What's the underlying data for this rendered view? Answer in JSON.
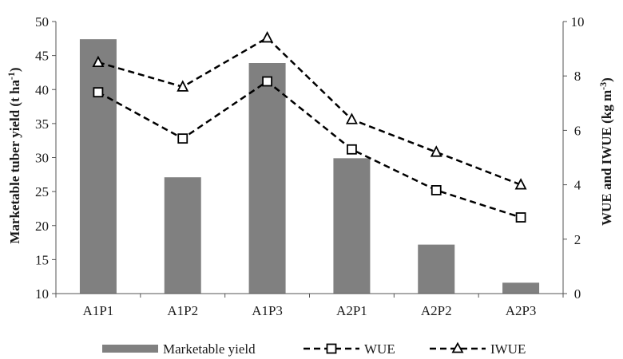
{
  "chart_data": {
    "type": "bar+line",
    "categories": [
      "A1P1",
      "A1P2",
      "A1P3",
      "A2P1",
      "A2P2",
      "A2P3"
    ],
    "bar_series": {
      "name": "Marketable yield",
      "axis": "left",
      "values": [
        47.4,
        27.1,
        43.9,
        29.9,
        17.2,
        11.6
      ],
      "color": "#808080"
    },
    "line_series": [
      {
        "name": "WUE",
        "axis": "right",
        "marker": "square",
        "values": [
          7.4,
          5.7,
          7.8,
          5.3,
          3.8,
          2.8
        ],
        "color": "#000000"
      },
      {
        "name": "IWUE",
        "axis": "right",
        "marker": "triangle",
        "values": [
          8.5,
          7.6,
          9.4,
          6.4,
          5.2,
          4.0
        ],
        "color": "#000000"
      }
    ],
    "ylabel_left_main": "Marketable tuber yield (t ha",
    "ylabel_left_sup": "-1",
    "ylabel_left_end": ")",
    "ylabel_right_main": "WUE and IWUE (kg m",
    "ylabel_right_sup": "-3",
    "ylabel_right_end": ")",
    "ylim_left": [
      10,
      50
    ],
    "yticks_left": [
      10,
      15,
      20,
      25,
      30,
      35,
      40,
      45,
      50
    ],
    "ylim_right": [
      0,
      10
    ],
    "yticks_right": [
      0,
      2,
      4,
      6,
      8,
      10
    ],
    "grid": false,
    "legend_position": "bottom"
  }
}
